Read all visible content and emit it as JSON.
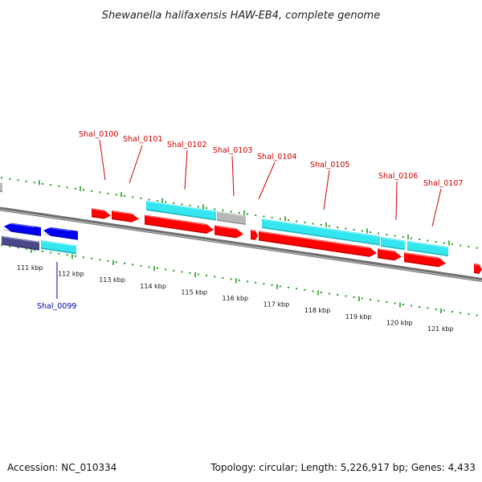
{
  "title": "Shewanella halifaxensis HAW-EB4, complete genome",
  "footer": {
    "accession": "Accession: NC_010334",
    "summary": "Topology: circular; Length: 5,226,917 bp; Genes: 4,433"
  },
  "colors": {
    "forward_gene": "#ff0000",
    "reverse_gene": "#0000ee",
    "rna_gene": "#33e6f0",
    "pseudo_gene": "#b8b8b8",
    "slate_gene": "#48488a",
    "tick": "#229922",
    "backbone": "#808080",
    "label_forward": "#cc0000",
    "label_reverse": "#0000aa"
  },
  "kbp_labels": [
    "111 kbp",
    "112 kbp",
    "113 kbp",
    "114 kbp",
    "115 kbp",
    "116 kbp",
    "117 kbp",
    "118 kbp",
    "119 kbp",
    "120 kbp",
    "121 kbp"
  ],
  "gene_labels": [
    {
      "text": "Shal_0099",
      "strand": "reverse"
    },
    {
      "text": "Shal_0100",
      "strand": "forward"
    },
    {
      "text": "Shal_0101",
      "strand": "forward"
    },
    {
      "text": "Shal_0102",
      "strand": "forward"
    },
    {
      "text": "Shal_0103",
      "strand": "forward"
    },
    {
      "text": "Shal_0104",
      "strand": "forward"
    },
    {
      "text": "Shal_0105",
      "strand": "forward"
    },
    {
      "text": "Shal_0106",
      "strand": "forward"
    },
    {
      "text": "Shal_0107",
      "strand": "forward"
    }
  ]
}
